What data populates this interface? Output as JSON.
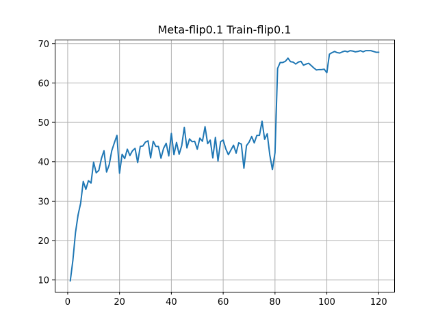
{
  "chart_data": {
    "type": "line",
    "title": "Meta-flip0.1 Train-flip0.1",
    "xlabel": "",
    "ylabel": "",
    "xlim": [
      -5,
      126
    ],
    "ylim": [
      7,
      71
    ],
    "xticks": [
      0,
      20,
      40,
      60,
      80,
      100,
      120
    ],
    "yticks": [
      10,
      20,
      30,
      40,
      50,
      60,
      70
    ],
    "grid": true,
    "series": [
      {
        "color": "#1f77b4",
        "x": [
          1,
          2,
          3,
          4,
          5,
          6,
          7,
          8,
          9,
          10,
          11,
          12,
          13,
          14,
          15,
          16,
          17,
          18,
          19,
          20,
          21,
          22,
          23,
          24,
          25,
          26,
          27,
          28,
          29,
          30,
          31,
          32,
          33,
          34,
          35,
          36,
          37,
          38,
          39,
          40,
          41,
          42,
          43,
          44,
          45,
          46,
          47,
          48,
          49,
          50,
          51,
          52,
          53,
          54,
          55,
          56,
          57,
          58,
          59,
          60,
          61,
          62,
          63,
          64,
          65,
          66,
          67,
          68,
          69,
          70,
          71,
          72,
          73,
          74,
          75,
          76,
          77,
          78,
          79,
          80,
          81,
          82,
          83,
          84,
          85,
          86,
          87,
          88,
          89,
          90,
          91,
          92,
          93,
          94,
          95,
          96,
          97,
          98,
          99,
          100,
          101,
          102,
          103,
          104,
          105,
          106,
          107,
          108,
          109,
          110,
          111,
          112,
          113,
          114,
          115,
          116,
          117,
          118,
          119,
          120
        ],
        "y": [
          9.8,
          15.0,
          22.0,
          26.5,
          29.5,
          35.0,
          33.0,
          35.2,
          34.6,
          39.9,
          37.2,
          37.8,
          40.8,
          42.8,
          37.4,
          39.2,
          42.8,
          44.8,
          46.7,
          37.1,
          41.9,
          40.8,
          43.2,
          41.6,
          42.8,
          43.4,
          39.8,
          43.9,
          44.0,
          45.0,
          45.3,
          41.0,
          45.2,
          43.9,
          43.9,
          40.9,
          43.4,
          44.7,
          41.5,
          47.2,
          41.8,
          44.9,
          41.9,
          44.1,
          48.7,
          43.5,
          45.8,
          45.1,
          45.2,
          43.2,
          46.0,
          45.2,
          48.9,
          44.6,
          45.5,
          41.0,
          46.2,
          40.2,
          45.1,
          45.5,
          43.3,
          41.8,
          43.0,
          44.2,
          42.2,
          44.8,
          44.5,
          38.4,
          44.1,
          45.0,
          46.4,
          44.8,
          46.7,
          46.7,
          50.3,
          45.7,
          47.1,
          41.7,
          38.0,
          42.3,
          63.7,
          65.2,
          65.2,
          65.5,
          66.3,
          65.4,
          65.3,
          64.8,
          65.3,
          65.5,
          64.5,
          64.8,
          65.0,
          64.4,
          63.8,
          63.3,
          63.4,
          63.4,
          63.5,
          62.6,
          67.3,
          67.7,
          68.0,
          67.7,
          67.6,
          67.9,
          68.1,
          67.9,
          68.2,
          68.1,
          67.9,
          68.0,
          68.2,
          67.9,
          68.2,
          68.2,
          68.2,
          68.0,
          67.8,
          67.8
        ]
      }
    ]
  }
}
